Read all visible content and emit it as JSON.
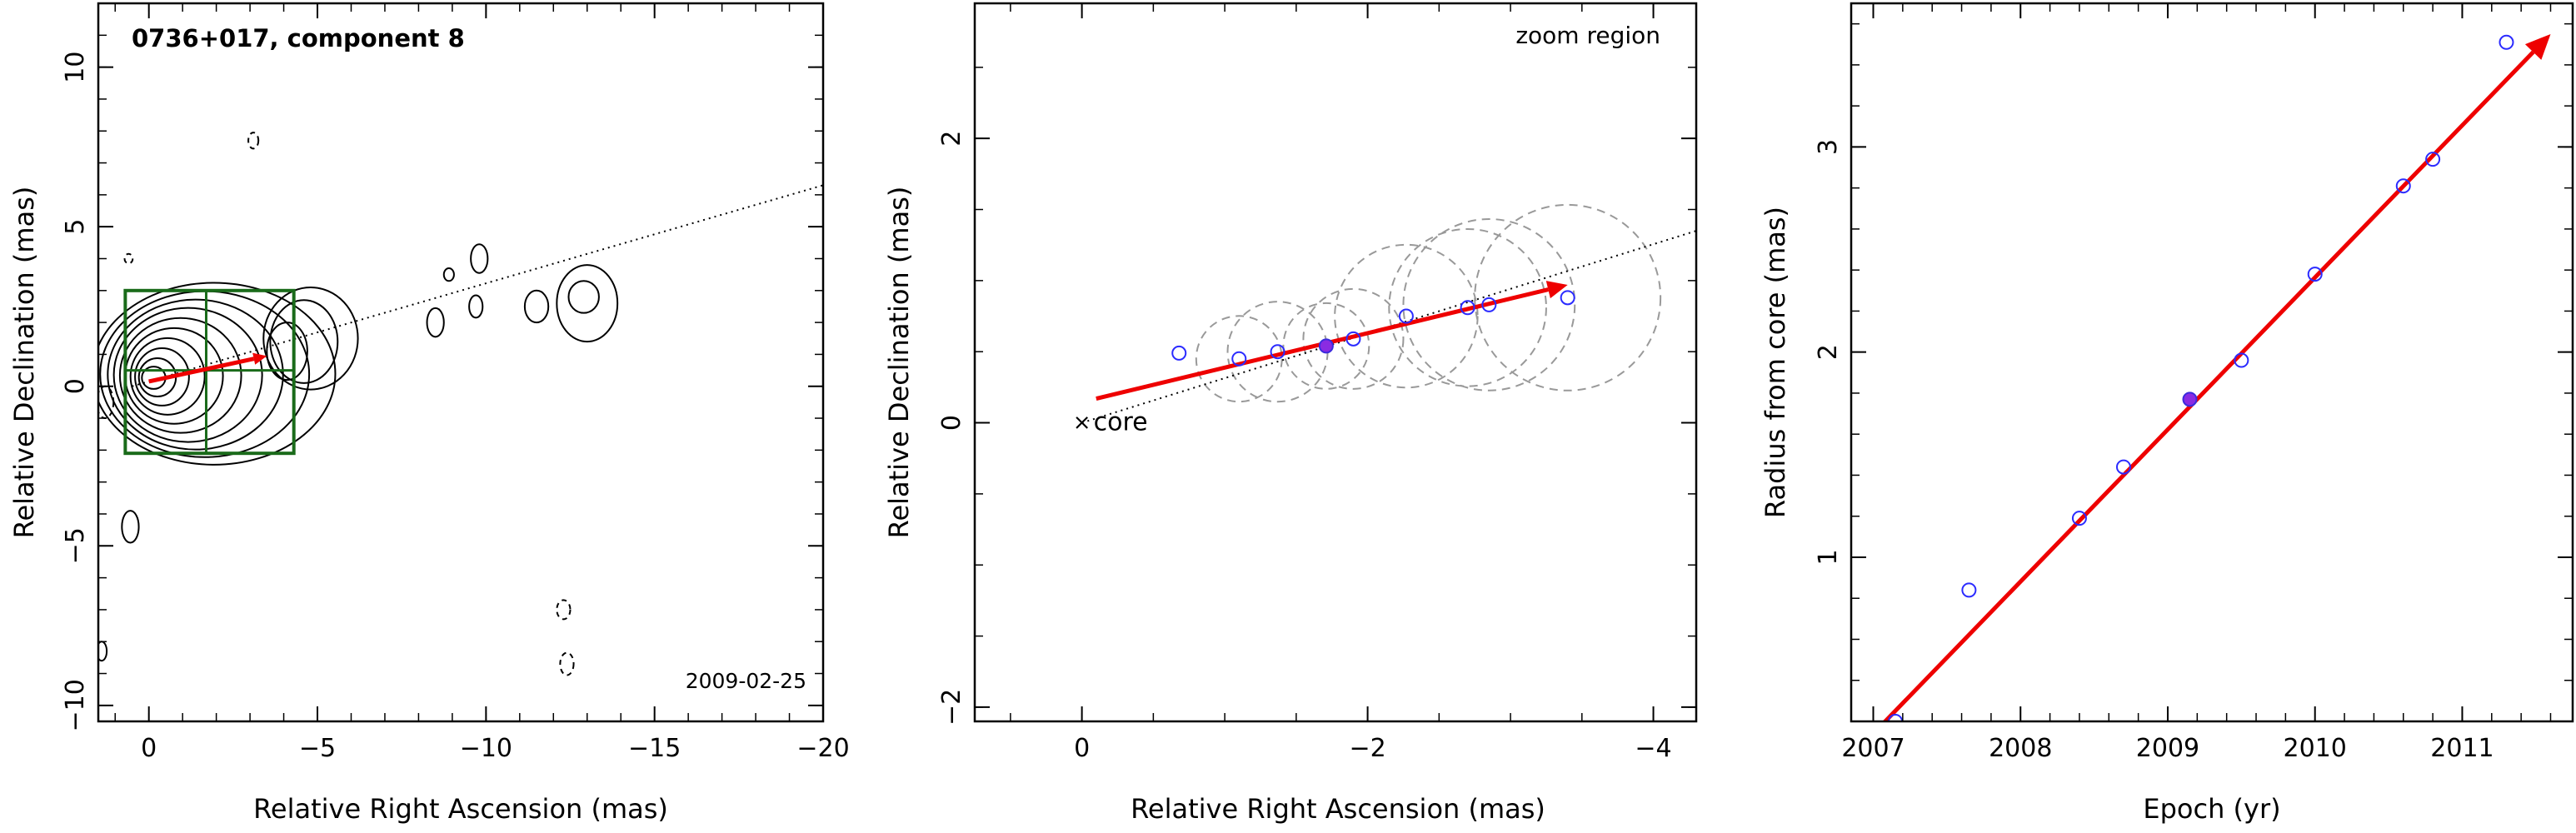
{
  "chart_data": [
    {
      "type": "scatter",
      "subtype": "VLBI contour map",
      "title": "0736+017, component 8",
      "epoch_label": "2009-02-25",
      "xlabel": "Relative Right Ascension (mas)",
      "ylabel": "Relative Declination (mas)",
      "xlim": [
        1.5,
        -20
      ],
      "ylim": [
        -10.5,
        12
      ],
      "xticks": [
        0,
        -5,
        -10,
        -15,
        -20
      ],
      "yticks": [
        -10,
        -5,
        0,
        5,
        10
      ],
      "jet_direction_line": {
        "x": [
          0.5,
          -20
        ],
        "y": [
          0,
          6.3
        ]
      },
      "motion_vector": {
        "x": [
          0,
          -3.5
        ],
        "y": [
          0.15,
          0.95
        ]
      },
      "zoom_box": {
        "x": [
          0.7,
          -4.3
        ],
        "y": [
          -2.1,
          3.0
        ],
        "divider_x": -1.7,
        "divider_y": 0.5
      },
      "core_contours": {
        "x": 0.05,
        "y": 0.25,
        "levels": [
          {
            "rx": 0.35,
            "ry": 0.35
          },
          {
            "rx": 0.55,
            "ry": 0.6
          },
          {
            "rx": 0.8,
            "ry": 0.9
          },
          {
            "rx": 1.1,
            "ry": 1.2
          },
          {
            "rx": 1.45,
            "ry": 1.5
          },
          {
            "rx": 1.8,
            "ry": 1.8
          },
          {
            "rx": 2.2,
            "ry": 2.1
          },
          {
            "rx": 2.6,
            "ry": 2.35
          },
          {
            "rx": 3.1,
            "ry": 2.6
          },
          {
            "rx": 3.6,
            "ry": 2.85
          }
        ]
      },
      "extended_contours": [
        {
          "x": -4.1,
          "y": 1.1,
          "rx": 0.6,
          "ry": 0.9
        },
        {
          "x": -4.6,
          "y": 1.4,
          "rx": 1.0,
          "ry": 1.3
        },
        {
          "x": -4.8,
          "y": 1.5,
          "rx": 1.4,
          "ry": 1.6
        },
        {
          "x": -8.5,
          "y": 2.0,
          "rx": 0.25,
          "ry": 0.45
        },
        {
          "x": -9.7,
          "y": 2.5,
          "rx": 0.2,
          "ry": 0.35
        },
        {
          "x": -9.8,
          "y": 4.0,
          "rx": 0.25,
          "ry": 0.45
        },
        {
          "x": -8.9,
          "y": 3.5,
          "rx": 0.15,
          "ry": 0.2
        },
        {
          "x": -11.5,
          "y": 2.5,
          "rx": 0.35,
          "ry": 0.5
        },
        {
          "x": -13.0,
          "y": 2.6,
          "rx": 0.9,
          "ry": 1.2
        },
        {
          "x": -12.9,
          "y": 2.8,
          "rx": 0.45,
          "ry": 0.5
        },
        {
          "x": 0.55,
          "y": -4.4,
          "rx": 0.25,
          "ry": 0.5
        },
        {
          "x": 1.4,
          "y": -8.3,
          "rx": 0.15,
          "ry": 0.3
        }
      ],
      "negative_contours": [
        {
          "x": 1.3,
          "y": -0.5,
          "rx": 0.25,
          "ry": 0.5
        },
        {
          "x": -3.1,
          "y": 7.7,
          "rx": 0.15,
          "ry": 0.25
        },
        {
          "x": 0.6,
          "y": 4.0,
          "rx": 0.12,
          "ry": 0.15
        },
        {
          "x": -12.3,
          "y": -7.0,
          "rx": 0.2,
          "ry": 0.3
        },
        {
          "x": -12.4,
          "y": -8.7,
          "rx": 0.2,
          "ry": 0.35
        }
      ]
    },
    {
      "type": "scatter",
      "subtype": "zoom region",
      "title": "zoom region",
      "core_label": "core",
      "xlabel": "Relative Right Ascension (mas)",
      "ylabel": "Relative Declination (mas)",
      "xlim": [
        0.75,
        -4.3
      ],
      "ylim": [
        -2.1,
        2.95
      ],
      "xticks": [
        0,
        -2,
        -4
      ],
      "yticks": [
        -2,
        0,
        2
      ],
      "dotted_line": {
        "x": [
          0,
          -4.3
        ],
        "y": [
          0.0,
          1.35
        ]
      },
      "motion_vector": {
        "x": [
          -0.1,
          -3.4
        ],
        "y": [
          0.17,
          0.97
        ]
      },
      "points": [
        {
          "x": -0.68,
          "y": 0.49,
          "r": 0
        },
        {
          "x": -1.1,
          "y": 0.45,
          "r": 0.3
        },
        {
          "x": -1.37,
          "y": 0.5,
          "r": 0.35
        },
        {
          "x": -1.71,
          "y": 0.54,
          "r": 0.3
        },
        {
          "x": -1.9,
          "y": 0.59,
          "r": 0.35
        },
        {
          "x": -2.27,
          "y": 0.75,
          "r": 0.5
        },
        {
          "x": -2.7,
          "y": 0.81,
          "r": 0.55
        },
        {
          "x": -2.85,
          "y": 0.83,
          "r": 0.6
        },
        {
          "x": -3.4,
          "y": 0.88,
          "r": 0.65
        }
      ],
      "highlight_index": 3
    },
    {
      "type": "scatter",
      "subtype": "radius vs epoch",
      "xlabel": "Epoch (yr)",
      "ylabel": "Radius from core (mas)",
      "xlim": [
        2006.85,
        2011.75
      ],
      "ylim": [
        0.2,
        3.7
      ],
      "xticks": [
        2007,
        2008,
        2009,
        2010,
        2011
      ],
      "yticks": [
        1,
        2,
        3
      ],
      "x": [
        2007.15,
        2007.65,
        2008.4,
        2008.7,
        2009.15,
        2009.5,
        2010.0,
        2010.6,
        2010.8,
        2011.3
      ],
      "y": [
        0.2,
        0.84,
        1.19,
        1.44,
        1.77,
        1.96,
        2.38,
        2.81,
        2.94,
        3.51
      ],
      "highlight_index": 4,
      "fit_line": {
        "x": [
          2007.0,
          2011.6
        ],
        "y": [
          0.14,
          3.55
        ]
      }
    }
  ]
}
